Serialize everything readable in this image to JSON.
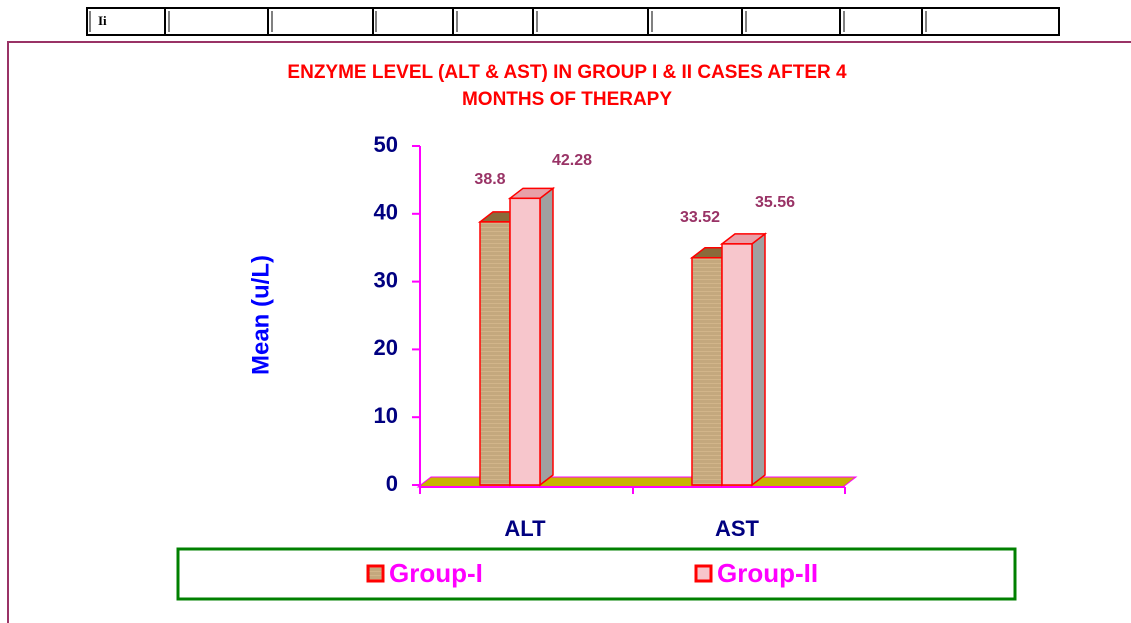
{
  "table": {
    "first_cell": "Ii"
  },
  "chart_data": {
    "type": "bar3d",
    "title": [
      "ENZYME LEVEL (ALT & AST) IN GROUP I & II CASES AFTER 4",
      "MONTHS OF THERAPY"
    ],
    "ylabel": "Mean (u/L)",
    "categories": [
      "ALT",
      "AST"
    ],
    "series": [
      {
        "name": "Group-I",
        "color": "#c9a87a",
        "values": [
          38.8,
          33.52
        ]
      },
      {
        "name": "Group-II",
        "color": "#f7c6cc",
        "values": [
          42.28,
          35.56
        ]
      }
    ],
    "ylim": [
      0,
      50
    ],
    "yticks": [
      0,
      10,
      20,
      30,
      40,
      50
    ]
  }
}
